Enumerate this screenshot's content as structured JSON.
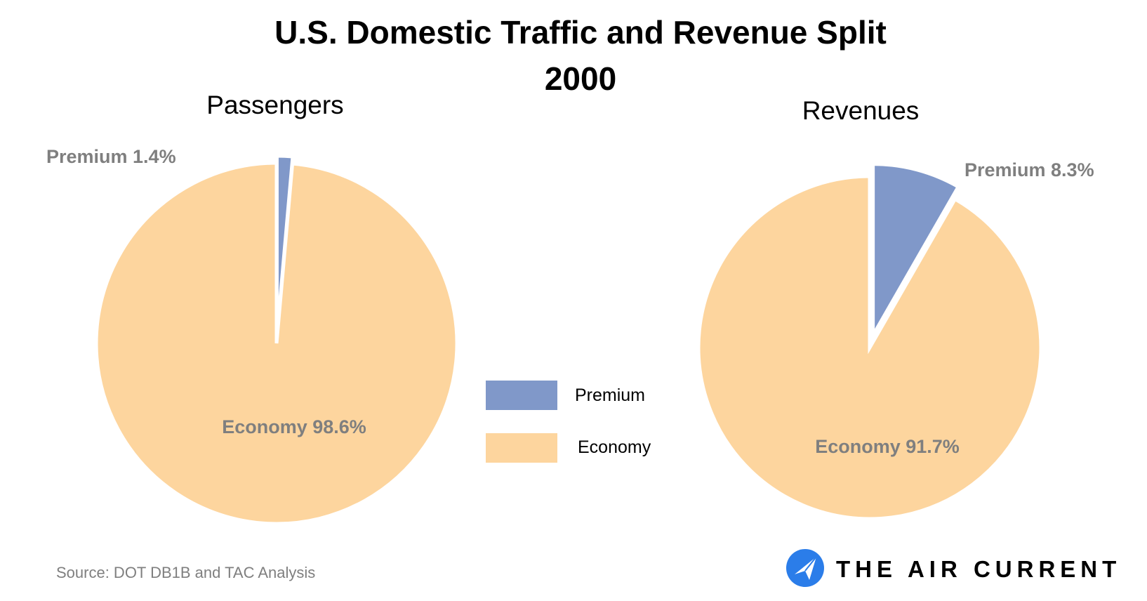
{
  "chart_data": {
    "type": "pie",
    "title": "U.S. Domestic Traffic and Revenue Split",
    "subtitle": "2000",
    "pies": [
      {
        "name": "Passengers",
        "slices": [
          {
            "category": "Premium",
            "value": 1.4,
            "label": "Premium 1.4%"
          },
          {
            "category": "Economy",
            "value": 98.6,
            "label": "Economy 98.6%"
          }
        ]
      },
      {
        "name": "Revenues",
        "slices": [
          {
            "category": "Premium",
            "value": 8.3,
            "label": "Premium 8.3%"
          },
          {
            "category": "Economy",
            "value": 91.7,
            "label": "Economy 91.7%"
          }
        ]
      }
    ],
    "legend": [
      {
        "label": "Premium",
        "color": "#8098c9"
      },
      {
        "label": "Economy",
        "color": "#fdd59e"
      }
    ],
    "legend_position": "center",
    "colors": {
      "Premium": "#8098c9",
      "Economy": "#fdd59e"
    },
    "premium_slice_exploded": true
  },
  "source": "Source: DOT DB1B and TAC Analysis",
  "brand": {
    "name": "THE AIR CURRENT",
    "logo_color": "#2b7de9",
    "logo_icon": "paper-plane-icon"
  }
}
